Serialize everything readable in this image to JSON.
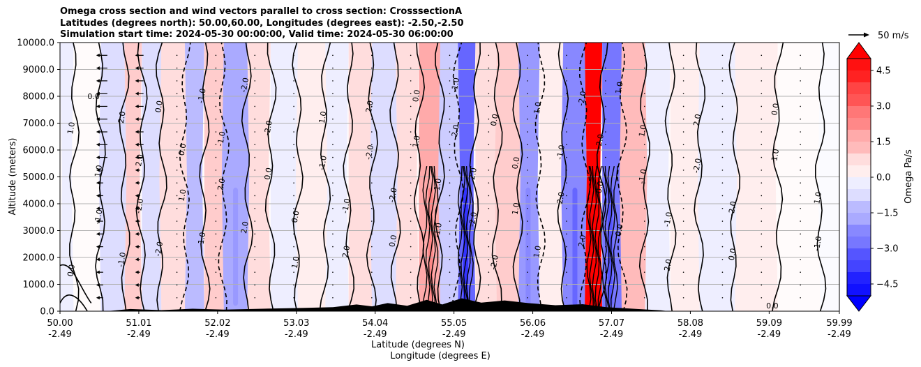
{
  "title_lines": [
    "Omega cross section and wind vectors parallel to cross section: CrosssectionA",
    "Latitudes (degrees north): 50.00,60.00, Longitudes (degrees east): -2.50,-2.50",
    "Simulation start time: 2024-05-30 00:00:00, Valid time: 2024-05-30 06:00:00"
  ],
  "quiver_key": "50 m/s",
  "colorbar_label": "Omega Pa/s",
  "contour_labels": [
    "0.0",
    "1.0",
    "-1.0",
    "2.0",
    "-2.0"
  ],
  "colors": {
    "negative_max": "#0000ff",
    "neutral": "#ffffff",
    "positive_max": "#ff0000",
    "terrain": "#000000",
    "grid": "#b0b0b0"
  },
  "chart_data": {
    "type": "heatmap",
    "ylabel": "Altitude (meters)",
    "xlabel_lines": [
      "Latitude (degrees N)",
      "Longitude (degrees E)"
    ],
    "ylim": [
      0,
      10000
    ],
    "yticks": [
      "0.0",
      "1000.0",
      "2000.0",
      "3000.0",
      "4000.0",
      "5000.0",
      "6000.0",
      "7000.0",
      "8000.0",
      "9000.0",
      "10000.0"
    ],
    "xlim": [
      50.0,
      59.99
    ],
    "xticks": [
      {
        "lat": "50.00",
        "lon": "-2.49"
      },
      {
        "lat": "51.01",
        "lon": "-2.49"
      },
      {
        "lat": "52.02",
        "lon": "-2.49"
      },
      {
        "lat": "53.03",
        "lon": "-2.49"
      },
      {
        "lat": "54.04",
        "lon": "-2.49"
      },
      {
        "lat": "55.05",
        "lon": "-2.49"
      },
      {
        "lat": "56.06",
        "lon": "-2.49"
      },
      {
        "lat": "57.07",
        "lon": "-2.49"
      },
      {
        "lat": "58.08",
        "lon": "-2.49"
      },
      {
        "lat": "59.09",
        "lon": "-2.49"
      },
      {
        "lat": "59.99",
        "lon": "-2.49"
      }
    ],
    "grid": "horizontal",
    "colorbar": {
      "ticks": [
        "4.5",
        "3.0",
        "1.5",
        "0.0",
        "−1.5",
        "−3.0",
        "−4.5"
      ],
      "range": [
        -5,
        5
      ],
      "extend": "both"
    },
    "omega_bands": [
      {
        "lat": 50.0,
        "omega": -0.2
      },
      {
        "lat": 50.35,
        "omega": 0.1
      },
      {
        "lat": 50.7,
        "omega": -0.8
      },
      {
        "lat": 50.95,
        "omega": 0.9
      },
      {
        "lat": 51.15,
        "omega": -0.6
      },
      {
        "lat": 51.45,
        "omega": 0.6
      },
      {
        "lat": 51.75,
        "omega": -1.4
      },
      {
        "lat": 51.95,
        "omega": 0.9
      },
      {
        "lat": 52.25,
        "omega": -1.6
      },
      {
        "lat": 52.55,
        "omega": 0.5
      },
      {
        "lat": 52.85,
        "omega": -0.3
      },
      {
        "lat": 53.25,
        "omega": 0.4
      },
      {
        "lat": 53.55,
        "omega": -0.5
      },
      {
        "lat": 53.85,
        "omega": 0.8
      },
      {
        "lat": 54.15,
        "omega": -0.7
      },
      {
        "lat": 54.45,
        "omega": 0.5
      },
      {
        "lat": 54.75,
        "omega": 1.8
      },
      {
        "lat": 55.0,
        "omega": -0.9
      },
      {
        "lat": 55.2,
        "omega": -3.0
      },
      {
        "lat": 55.45,
        "omega": 0.7
      },
      {
        "lat": 55.75,
        "omega": 0.9
      },
      {
        "lat": 56.0,
        "omega": -1.9
      },
      {
        "lat": 56.3,
        "omega": 0.4
      },
      {
        "lat": 56.6,
        "omega": -2.4
      },
      {
        "lat": 56.85,
        "omega": 5.0
      },
      {
        "lat": 57.05,
        "omega": -2.6
      },
      {
        "lat": 57.35,
        "omega": 1.2
      },
      {
        "lat": 57.65,
        "omega": -0.5
      },
      {
        "lat": 58.0,
        "omega": 0.3
      },
      {
        "lat": 58.4,
        "omega": -0.4
      },
      {
        "lat": 58.9,
        "omega": 0.2
      },
      {
        "lat": 59.5,
        "omega": 0.1
      },
      {
        "lat": 59.99,
        "omega": -0.1
      }
    ],
    "terrain": [
      {
        "lat": 50.0,
        "alt": 0
      },
      {
        "lat": 50.6,
        "alt": 0
      },
      {
        "lat": 50.9,
        "alt": 80
      },
      {
        "lat": 51.3,
        "alt": 40
      },
      {
        "lat": 51.7,
        "alt": 90
      },
      {
        "lat": 52.1,
        "alt": 60
      },
      {
        "lat": 52.6,
        "alt": 90
      },
      {
        "lat": 53.1,
        "alt": 120
      },
      {
        "lat": 53.5,
        "alt": 150
      },
      {
        "lat": 53.8,
        "alt": 250
      },
      {
        "lat": 54.0,
        "alt": 180
      },
      {
        "lat": 54.2,
        "alt": 300
      },
      {
        "lat": 54.45,
        "alt": 200
      },
      {
        "lat": 54.7,
        "alt": 420
      },
      {
        "lat": 54.9,
        "alt": 250
      },
      {
        "lat": 55.15,
        "alt": 480
      },
      {
        "lat": 55.4,
        "alt": 320
      },
      {
        "lat": 55.7,
        "alt": 400
      },
      {
        "lat": 56.0,
        "alt": 300
      },
      {
        "lat": 56.35,
        "alt": 220
      },
      {
        "lat": 56.7,
        "alt": 260
      },
      {
        "lat": 57.0,
        "alt": 150
      },
      {
        "lat": 57.4,
        "alt": 80
      },
      {
        "lat": 57.7,
        "alt": 30
      },
      {
        "lat": 57.8,
        "alt": 0
      },
      {
        "lat": 59.99,
        "alt": 0
      }
    ]
  }
}
